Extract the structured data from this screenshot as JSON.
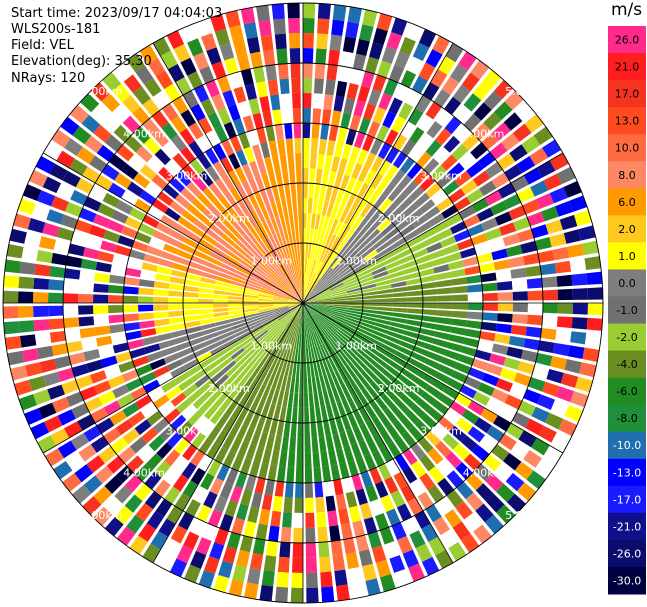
{
  "info": {
    "start_time": "Start time: 2023/09/17 04:04:03",
    "instrument": "WLS200s-181",
    "field": "Field: VEL",
    "elevation": "Elevation(deg): 35.30",
    "nrays": "NRays: 120"
  },
  "colorbar": {
    "unit": "m/s",
    "ticks": [
      "26.0",
      "21.0",
      "17.0",
      "13.0",
      "10.0",
      "8.0",
      "6.0",
      "2.0",
      "1.0",
      "0.0",
      "-1.0",
      "-2.0",
      "-4.0",
      "-6.0",
      "-8.0",
      "-10.0",
      "-13.0",
      "-17.0",
      "-21.0",
      "-26.0",
      "-30.0"
    ],
    "colors": [
      "#ff2a8a",
      "#ff1e1e",
      "#f5331e",
      "#ff4b1f",
      "#ff6a40",
      "#ff8864",
      "#ff9a00",
      "#ffc81e",
      "#ffff00",
      "#7e7e7e",
      "#707070",
      "#9acd32",
      "#6b8e23",
      "#228b22",
      "#1f8f3a",
      "#1f6fb0",
      "#0000ff",
      "#1a1aff",
      "#10108a",
      "#0c0c6e",
      "#000040"
    ]
  },
  "chart_data": {
    "type": "heatmap",
    "title": "",
    "rays": 120,
    "range_rings_km": [
      1.0,
      2.0,
      3.0,
      4.0,
      5.0
    ],
    "range_labels": [
      "1.00km",
      "2.00km",
      "3.00km",
      "4.00km",
      "5.00km"
    ],
    "sectors": [
      {
        "az_from": 0,
        "az_to": 35,
        "range_km": [
          0,
          2.6
        ],
        "value": 1.5
      },
      {
        "az_from": 35,
        "az_to": 60,
        "range_km": [
          0,
          2.6
        ],
        "value": 0.0
      },
      {
        "az_from": 60,
        "az_to": 80,
        "range_km": [
          0,
          2.6
        ],
        "value": -2.0
      },
      {
        "az_from": 80,
        "az_to": 95,
        "range_km": [
          0,
          2.6
        ],
        "value": -4.0
      },
      {
        "az_from": 95,
        "az_to": 190,
        "range_km": [
          0,
          2.8
        ],
        "value": -6.0
      },
      {
        "az_from": 190,
        "az_to": 215,
        "range_km": [
          0,
          2.8
        ],
        "value": -4.0
      },
      {
        "az_from": 215,
        "az_to": 240,
        "range_km": [
          0,
          2.4
        ],
        "value": -2.0
      },
      {
        "az_from": 240,
        "az_to": 258,
        "range_km": [
          0,
          2.4
        ],
        "value": 0.0
      },
      {
        "az_from": 258,
        "az_to": 285,
        "range_km": [
          0,
          2.4
        ],
        "value": 1.5
      },
      {
        "az_from": 285,
        "az_to": 345,
        "range_km": [
          0,
          2.4
        ],
        "value": 7.0
      },
      {
        "az_from": 345,
        "az_to": 360,
        "range_km": [
          0,
          2.5
        ],
        "value": 5.0
      }
    ],
    "noise_beyond_km": 2.7
  }
}
